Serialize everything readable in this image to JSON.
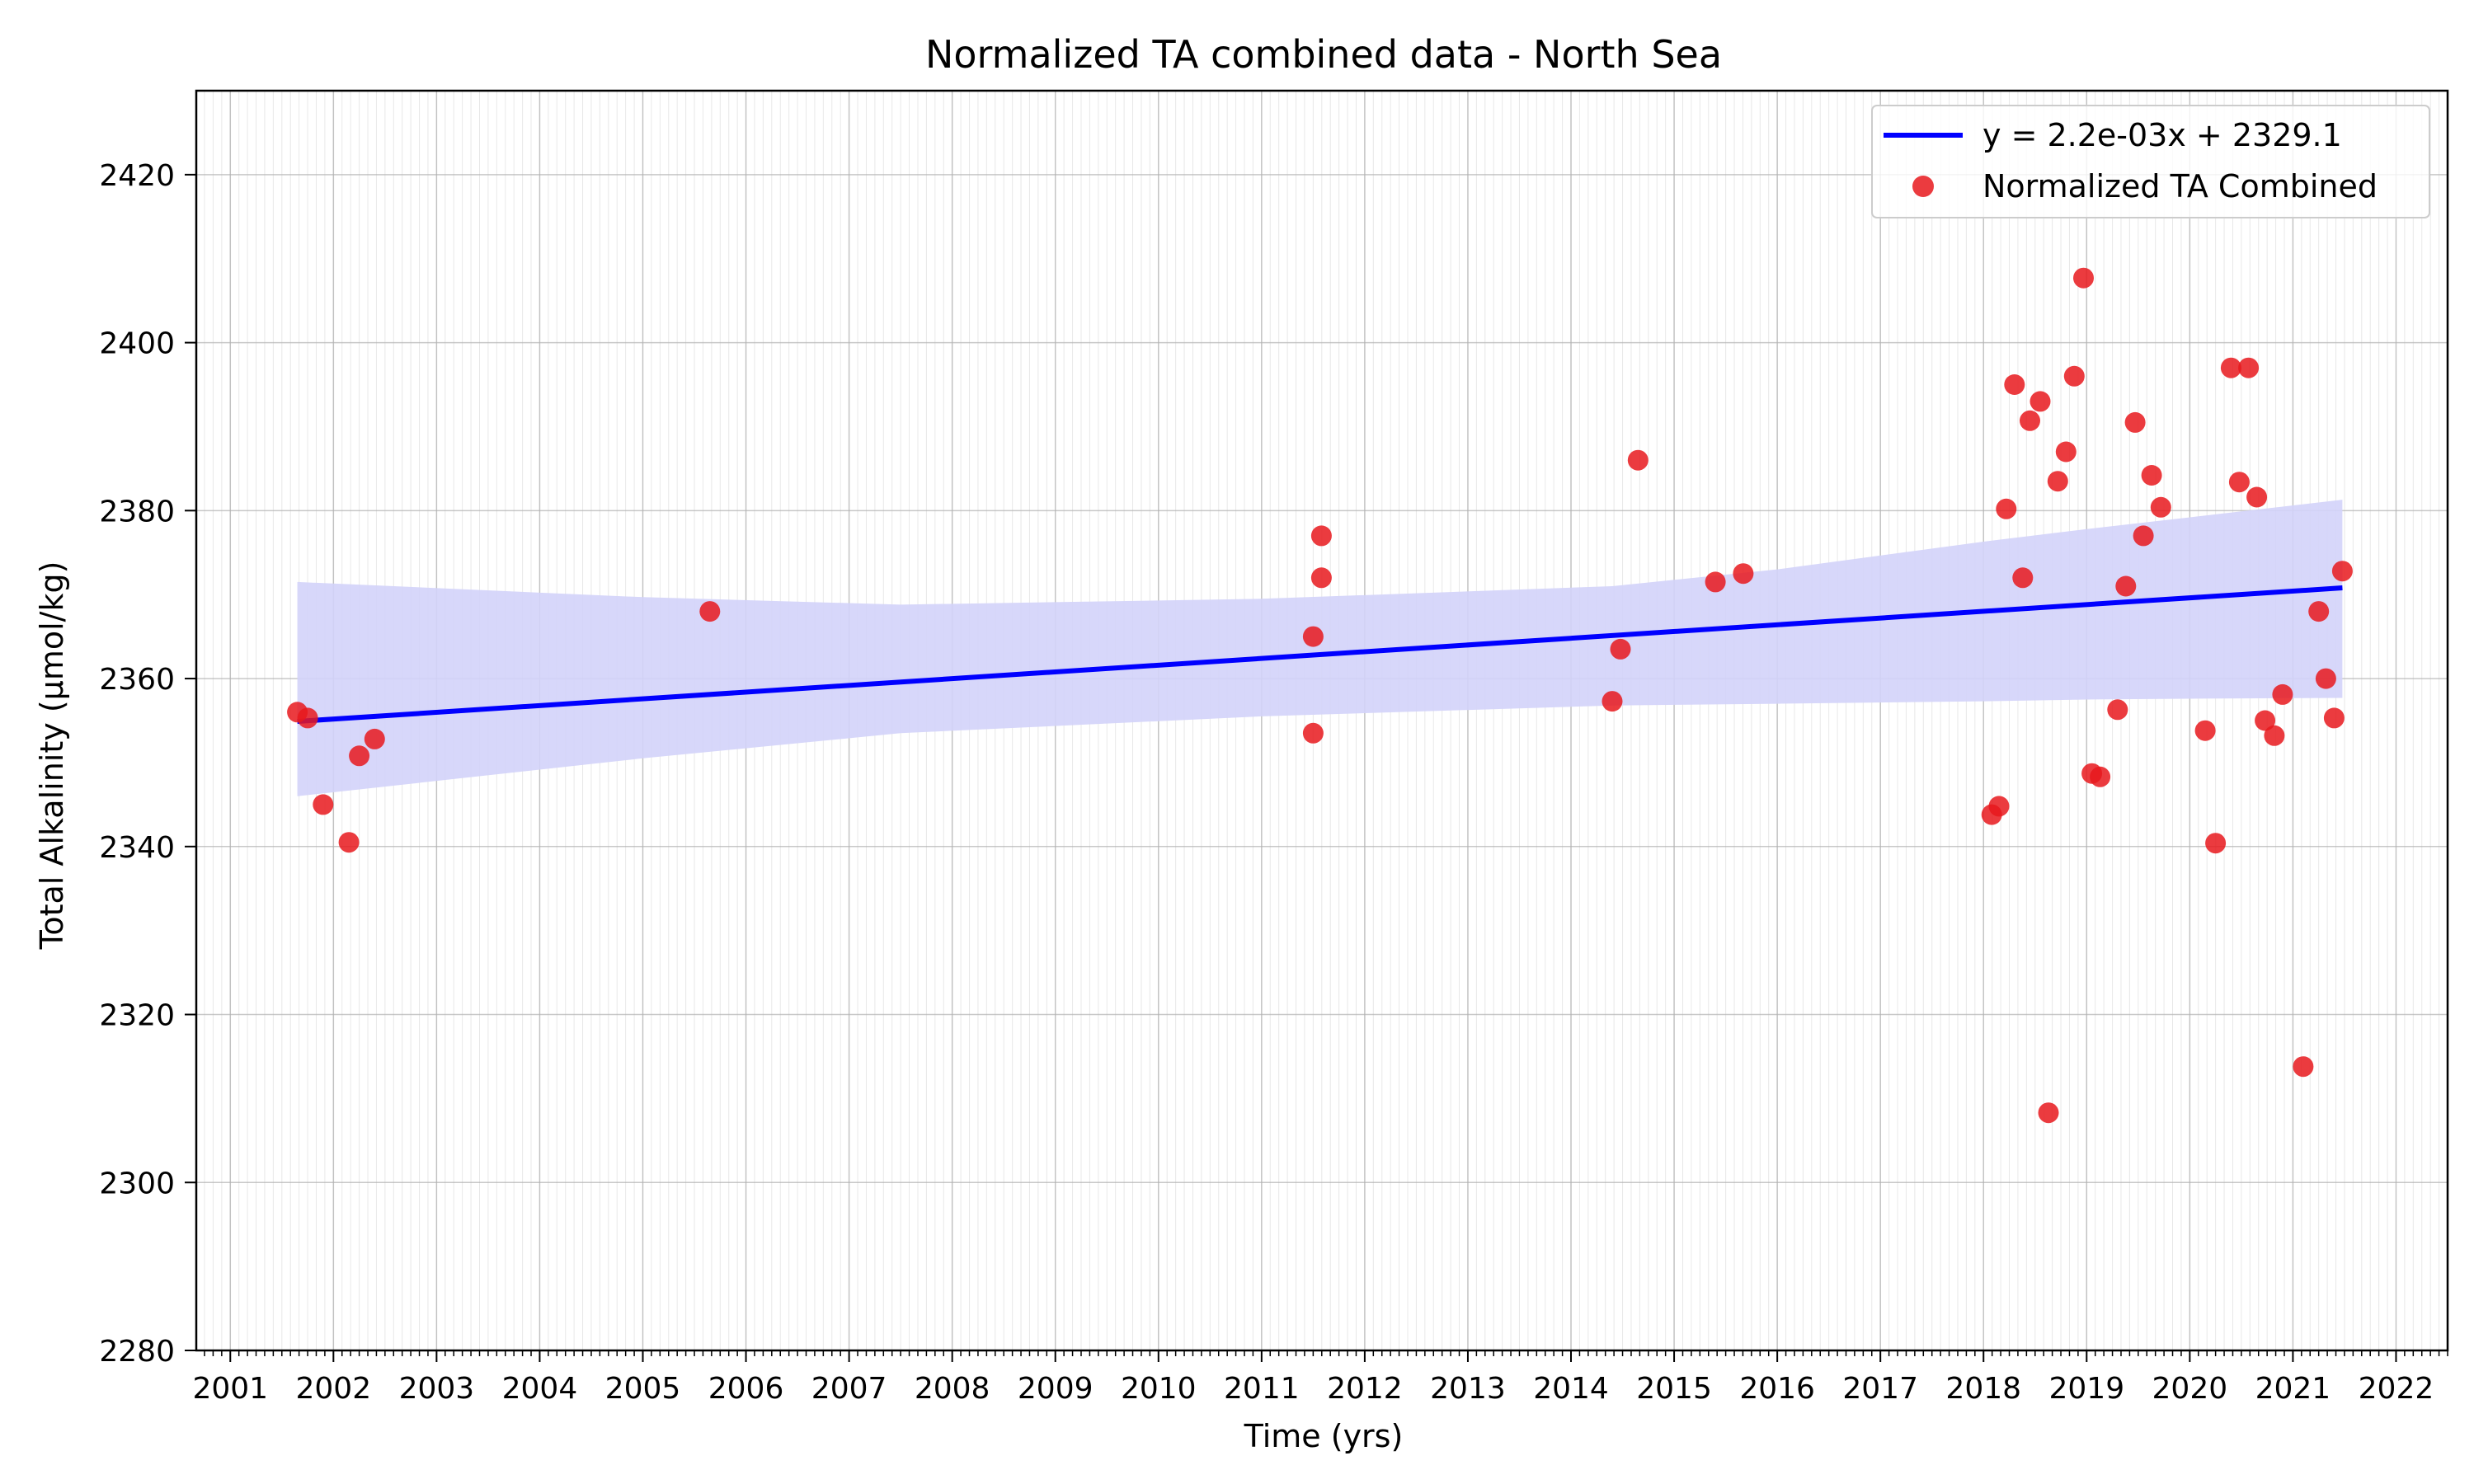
{
  "chart_data": {
    "type": "scatter",
    "title": "Normalized TA combined data - North Sea",
    "xlabel": "Time (yrs)",
    "ylabel": "Total Alkalinity (µmol/kg)",
    "xlim": [
      2000.67,
      2022.5
    ],
    "ylim": [
      2280,
      2430
    ],
    "xticks": [
      2001,
      2002,
      2003,
      2004,
      2005,
      2006,
      2007,
      2008,
      2009,
      2010,
      2011,
      2012,
      2013,
      2014,
      2015,
      2016,
      2017,
      2018,
      2019,
      2020,
      2021,
      2022
    ],
    "yticks": [
      2280,
      2300,
      2320,
      2340,
      2360,
      2380,
      2400,
      2420
    ],
    "grid": true,
    "legend_position": "top-right",
    "colors": {
      "points": "#e8191d",
      "line": "#0000ff",
      "band": "#d3d3fa"
    },
    "series": [
      {
        "name": "Normalized TA Combined",
        "kind": "scatter",
        "x": [
          2001.65,
          2001.75,
          2001.9,
          2002.15,
          2002.25,
          2002.4,
          2005.65,
          2011.5,
          2011.5,
          2011.58,
          2011.58,
          2014.4,
          2014.48,
          2014.65,
          2015.4,
          2015.67,
          2018.08,
          2018.15,
          2018.22,
          2018.3,
          2018.38,
          2018.45,
          2018.55,
          2018.63,
          2018.72,
          2018.8,
          2018.88,
          2018.97,
          2019.05,
          2019.13,
          2019.3,
          2019.38,
          2019.47,
          2019.55,
          2019.63,
          2019.72,
          2020.15,
          2020.25,
          2020.4,
          2020.48,
          2020.57,
          2020.65,
          2020.73,
          2020.82,
          2020.9,
          2021.1,
          2021.25,
          2021.32,
          2021.4,
          2021.48
        ],
        "y": [
          2356,
          2355.3,
          2345,
          2340.5,
          2350.8,
          2352.8,
          2368,
          2365,
          2353.5,
          2377,
          2372,
          2357.3,
          2363.5,
          2386,
          2371.5,
          2372.5,
          2343.8,
          2344.8,
          2380.2,
          2395,
          2372,
          2390.7,
          2393,
          2308.3,
          2383.5,
          2387,
          2396,
          2407.7,
          2348.7,
          2348.3,
          2356.3,
          2371,
          2390.5,
          2377,
          2384.2,
          2380.4,
          2353.8,
          2340.4,
          2397,
          2383.4,
          2397,
          2381.6,
          2355,
          2353.2,
          2358.1,
          2313.8,
          2368,
          2360,
          2355.3,
          2372.8
        ]
      },
      {
        "name": "y = 2.2e-03x + 2329.1",
        "kind": "line",
        "x": [
          2001.65,
          2021.48
        ],
        "y": [
          2354.9,
          2370.8
        ]
      }
    ],
    "confidence_band": {
      "x": [
        2001.65,
        2005,
        2007.5,
        2011,
        2014.4,
        2016,
        2018,
        2019,
        2020,
        2021.48
      ],
      "upper": [
        2371.5,
        2369.7,
        2368.8,
        2369.5,
        2371,
        2373,
        2376.3,
        2377.8,
        2379.2,
        2381.3
      ],
      "lower": [
        2346,
        2350.5,
        2353.5,
        2355.5,
        2356.8,
        2357,
        2357.3,
        2357.5,
        2357.6,
        2357.7
      ]
    }
  }
}
